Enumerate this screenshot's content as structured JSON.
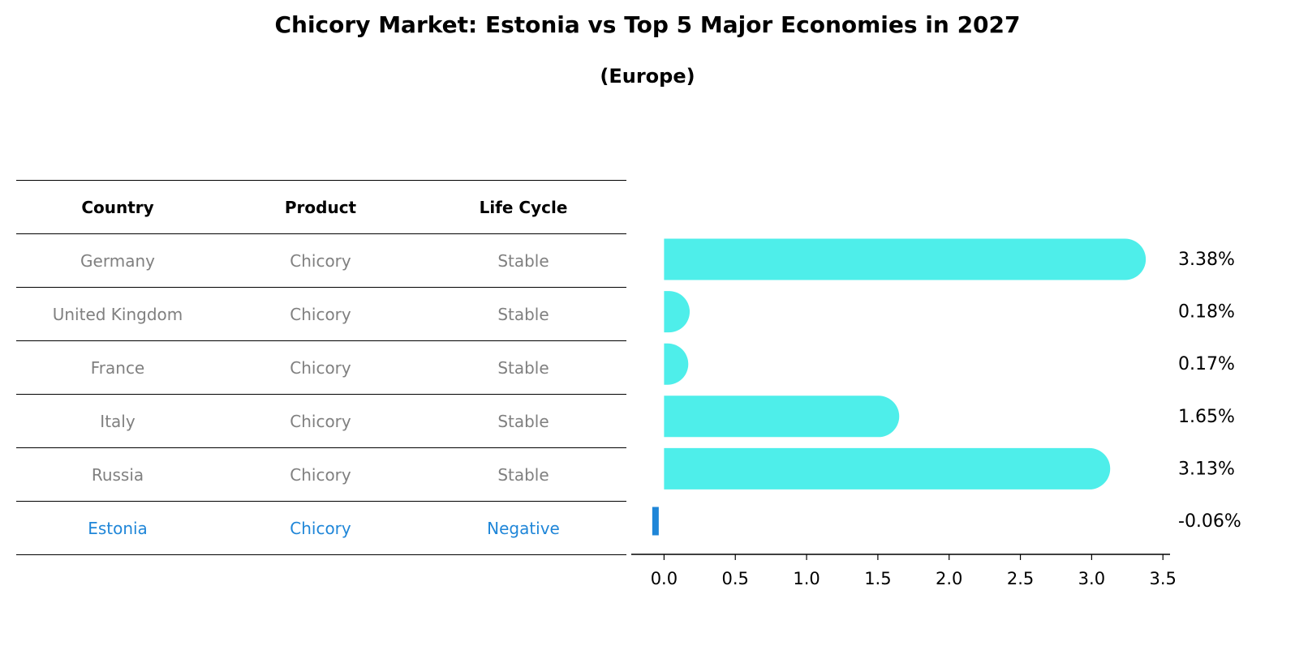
{
  "title": "Chicory Market: Estonia vs Top 5 Major Economies in 2027",
  "subtitle": "(Europe)",
  "table": {
    "headers": [
      "Country",
      "Product",
      "Life Cycle"
    ],
    "rows": [
      [
        "Germany",
        "Chicory",
        "Stable"
      ],
      [
        "United Kingdom",
        "Chicory",
        "Stable"
      ],
      [
        "France",
        "Chicory",
        "Stable"
      ],
      [
        "Italy",
        "Chicory",
        "Stable"
      ],
      [
        "Russia",
        "Chicory",
        "Stable"
      ],
      [
        "Estonia",
        "Chicory",
        "Negative"
      ]
    ]
  },
  "colors": {
    "bar": "#4eeeea",
    "highlight": "#1f86d8",
    "muted_text": "#808080"
  },
  "chart_data": {
    "type": "bar",
    "orientation": "horizontal",
    "categories": [
      "Germany",
      "United Kingdom",
      "France",
      "Italy",
      "Russia",
      "Estonia"
    ],
    "values": [
      3.38,
      0.18,
      0.17,
      1.65,
      3.13,
      -0.06
    ],
    "data_labels": [
      "3.38%",
      "0.18%",
      "0.17%",
      "1.65%",
      "3.13%",
      "-0.06%"
    ],
    "xlim": [
      -0.23,
      3.55
    ],
    "xticks": [
      0.0,
      0.5,
      1.0,
      1.5,
      2.0,
      2.5,
      3.0,
      3.5
    ],
    "xtick_labels": [
      "0.0",
      "0.5",
      "1.0",
      "1.5",
      "2.0",
      "2.5",
      "3.0",
      "3.5"
    ],
    "grid": false
  }
}
